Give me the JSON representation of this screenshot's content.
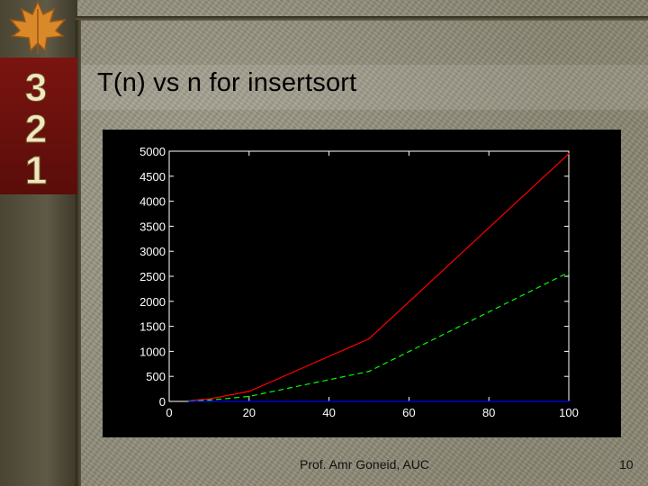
{
  "slide": {
    "title": "T(n) vs n for insertsort",
    "footer": "Prof. Amr Goneid, AUC",
    "page_number": "10"
  },
  "decor": {
    "numbers": [
      "3",
      "2",
      "1"
    ],
    "leaf_icon": "maple-leaf-icon"
  },
  "colors": {
    "plot_background": "#000000",
    "axes": "#ffffff",
    "series_1": "#ff0000",
    "series_2": "#00ff00",
    "series_3": "#0000ff",
    "number_block": "#6f0f0c"
  },
  "chart_data": {
    "type": "line",
    "title": "",
    "xlabel": "",
    "ylabel": "",
    "xlim": [
      0,
      100
    ],
    "ylim": [
      0,
      5000
    ],
    "x_ticks": [
      0,
      20,
      40,
      60,
      80,
      100
    ],
    "y_ticks": [
      0,
      500,
      1000,
      1500,
      2000,
      2500,
      3000,
      3500,
      4000,
      4500,
      5000
    ],
    "grid": false,
    "series": [
      {
        "color": "#ff0000",
        "style": "solid",
        "x": [
          5,
          10,
          20,
          50,
          100
        ],
        "y": [
          12,
          50,
          200,
          1250,
          4950
        ]
      },
      {
        "color": "#00ff00",
        "style": "dashed",
        "x": [
          5,
          10,
          20,
          50,
          100
        ],
        "y": [
          6,
          25,
          100,
          600,
          2580
        ]
      },
      {
        "color": "#0000ff",
        "style": "solid",
        "x": [
          5,
          10,
          20,
          50,
          100
        ],
        "y": [
          0,
          0,
          0,
          0,
          0
        ]
      }
    ]
  }
}
